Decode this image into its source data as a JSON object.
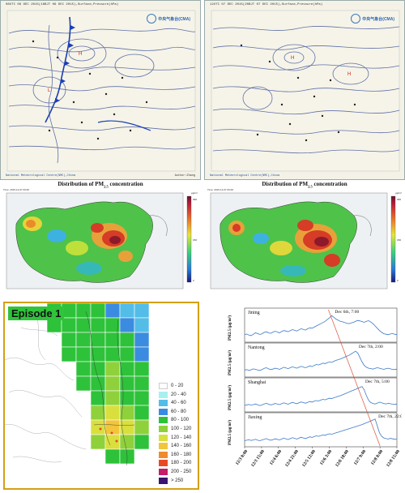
{
  "weather_maps": [
    {
      "header": "08UTC 06 DEC 2015(16BJT 06 DEC 2015),Surface,Pressure(hPa)",
      "logo": "中央气象台(CMA)",
      "footer_left": "National Meteorological Centre(NMC),China",
      "footer_right": "Author:Zhang"
    },
    {
      "header": "12UTC 07 DEC 2015(20BJT 07 DEC 2015),Surface,Pressure(hPa)",
      "logo": "中央气象台(CMA)",
      "footer_left": "National Meteorological Centre(NMC),China",
      "footer_right": ""
    }
  ],
  "pm_maps": [
    {
      "title": "Distribution of PM",
      "subscript": "2.5",
      "title_suffix": " concentration",
      "time": "Time: 2015-12-07 00:00",
      "unit": "μg/m³",
      "colorbar_ticks": [
        "0",
        "50",
        "100",
        "150",
        "200",
        "250",
        "300"
      ]
    },
    {
      "title": "Distribution of PM",
      "subscript": "2.5",
      "title_suffix": " concentration",
      "time": "Time: 2015-12-07 06:00",
      "unit": "μg/m³",
      "colorbar_ticks": [
        "0",
        "50",
        "100",
        "150",
        "200",
        "250",
        "300"
      ]
    }
  ],
  "episode": {
    "label": "Episode 1",
    "legend": [
      {
        "range": "0 - 20",
        "color": "#ffffff"
      },
      {
        "range": "20 - 40",
        "color": "#a6f0f0"
      },
      {
        "range": "40 - 60",
        "color": "#53bde8"
      },
      {
        "range": "60 - 80",
        "color": "#3b8ce0"
      },
      {
        "range": "80 - 100",
        "color": "#2ec23a"
      },
      {
        "range": "100 - 120",
        "color": "#8fd13a"
      },
      {
        "range": "120 - 140",
        "color": "#d9df3d"
      },
      {
        "range": "140 - 160",
        "color": "#f2c53a"
      },
      {
        "range": "160 - 180",
        "color": "#f08a2c"
      },
      {
        "range": "180 - 200",
        "color": "#e84a24"
      },
      {
        "range": "200 - 250",
        "color": "#c41d6a"
      },
      {
        "range": "> 250",
        "color": "#3a1470"
      }
    ]
  },
  "chart_data": {
    "type": "line",
    "ylabel": "PM2.5 (μg/m³)",
    "x_tick_labels": [
      "12/3 0:00",
      "12/3 15:00",
      "12/4 6:00",
      "12/4 21:00",
      "12/5 12:00",
      "12/6 3:00",
      "12/6 18:00",
      "12/7 9:00",
      "12/8 0:00",
      "12/8 15:00"
    ],
    "series": [
      {
        "name": "Jining",
        "annotation": "Dec 6th, 7:00",
        "peak_index": 40,
        "values": [
          42,
          45,
          40,
          38,
          44,
          50,
          47,
          43,
          46,
          52,
          55,
          50,
          48,
          53,
          57,
          54,
          50,
          56,
          60,
          58,
          55,
          60,
          64,
          61,
          58,
          63,
          68,
          65,
          62,
          68,
          72,
          70,
          75,
          80,
          85,
          90,
          95,
          100,
          108,
          115,
          125,
          118,
          110,
          105,
          100,
          98,
          95,
          92,
          90,
          93,
          96,
          100,
          104,
          102,
          99,
          96,
          100,
          103,
          97,
          90,
          80,
          70,
          60,
          52,
          46,
          44,
          42,
          45,
          47,
          44,
          42
        ]
      },
      {
        "name": "Nantong",
        "annotation": "Dec 7th, 2:00",
        "peak_index": 51,
        "values": [
          40,
          42,
          38,
          41,
          45,
          43,
          40,
          38,
          42,
          47,
          50,
          45,
          42,
          44,
          48,
          46,
          43,
          47,
          52,
          49,
          46,
          50,
          54,
          51,
          48,
          52,
          56,
          53,
          50,
          54,
          58,
          55,
          60,
          64,
          62,
          66,
          70,
          68,
          72,
          75,
          73,
          78,
          82,
          85,
          88,
          92,
          96,
          100,
          104,
          110,
          116,
          122,
          114,
          95,
          75,
          60,
          52,
          48,
          46,
          44,
          47,
          50,
          48,
          45,
          43,
          46,
          48,
          45,
          43,
          42,
          44
        ]
      },
      {
        "name": "Shanghai",
        "annotation": "Dec 7th, 5:00",
        "peak_index": 54,
        "values": [
          38,
          40,
          42,
          39,
          41,
          44,
          40,
          37,
          40,
          44,
          47,
          43,
          40,
          42,
          46,
          44,
          41,
          45,
          49,
          46,
          43,
          47,
          51,
          48,
          45,
          49,
          53,
          50,
          47,
          51,
          55,
          52,
          56,
          59,
          57,
          61,
          64,
          62,
          66,
          69,
          67,
          71,
          74,
          77,
          80,
          84,
          88,
          92,
          96,
          100,
          104,
          108,
          112,
          116,
          120,
          105,
          80,
          60,
          50,
          46,
          44,
          48,
          52,
          49,
          46,
          44,
          47,
          45,
          43,
          42,
          44
        ]
      },
      {
        "name": "Jiaxing",
        "annotation": "Dec 7th, 22:00",
        "peak_index": 60,
        "values": [
          36,
          38,
          40,
          37,
          39,
          42,
          38,
          36,
          39,
          42,
          45,
          41,
          38,
          40,
          44,
          42,
          39,
          43,
          47,
          44,
          41,
          45,
          49,
          46,
          43,
          47,
          51,
          48,
          45,
          49,
          53,
          50,
          54,
          57,
          55,
          58,
          61,
          59,
          63,
          66,
          64,
          67,
          70,
          73,
          76,
          79,
          82,
          85,
          88,
          91,
          94,
          97,
          100,
          103,
          106,
          110,
          114,
          118,
          122,
          126,
          130,
          100,
          70,
          55,
          48,
          45,
          43,
          46,
          44,
          42,
          43
        ]
      }
    ],
    "trend_line_color": "#d9533a",
    "series_color": "#3b79c9"
  }
}
